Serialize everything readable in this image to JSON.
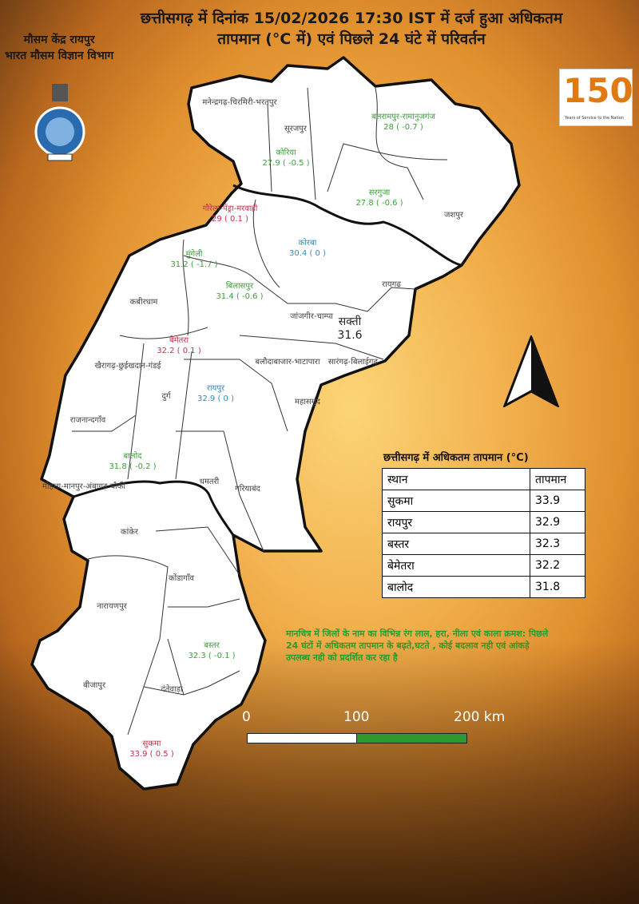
{
  "header": {
    "title_line1": "छत्तीसगढ़ में दिनांक 15/02/2026 17:30 IST में दर्ज हुआ अधिकतम",
    "title_line2": "तापमान (°C में) एवं पिछले 24 घंटे में परिवर्तन",
    "office_line1": "मौसम केंद्र रायपुर",
    "office_line2": "भारत मौसम विज्ञान विभाग",
    "logo_150_text": "150",
    "logo_150_tagline": "Years of Service to the Nation"
  },
  "colors": {
    "increase": "#c0304a",
    "decrease": "#3a9d3a",
    "no_change": "#2f8ab0",
    "no_data": "#222222",
    "scale_green": "#2e9a2e"
  },
  "districts": [
    {
      "name": "मनेन्द्रगढ़-चिरमिरी-भरतपुर",
      "value": "",
      "color": "gray"
    },
    {
      "name": "सूरजपुर",
      "value": "",
      "color": "gray"
    },
    {
      "name": "बलरामपुर-रामानुजगंज",
      "value": "28 ( -0.7 )",
      "color": "green"
    },
    {
      "name": "कोरिया",
      "value": "27.9 ( -0.5 )",
      "color": "green"
    },
    {
      "name": "सरगुजा",
      "value": "27.8 ( -0.6 )",
      "color": "green"
    },
    {
      "name": "जशपुर",
      "value": "",
      "color": "gray"
    },
    {
      "name": "गौरेला-पेंड्रा-मरवाही",
      "value": "29 ( 0.1 )",
      "color": "red"
    },
    {
      "name": "कोरबा",
      "value": "30.4 ( 0 )",
      "color": "blue"
    },
    {
      "name": "मुंगेली",
      "value": "31.2 ( -1.7 )",
      "color": "green"
    },
    {
      "name": "बिलासपुर",
      "value": "31.4 ( -0.6 )",
      "color": "green"
    },
    {
      "name": "रायगढ़",
      "value": "",
      "color": "gray"
    },
    {
      "name": "कबीरधाम",
      "value": "",
      "color": "gray"
    },
    {
      "name": "जांजगीर-चाम्पा",
      "value": "",
      "color": "gray"
    },
    {
      "name": "सक्ती",
      "value": "31.6",
      "color": "black"
    },
    {
      "name": "बेमेतरा",
      "value": "32.2 ( 0.1 )",
      "color": "red"
    },
    {
      "name": "खैरागढ़-छुईखदान-गंडई",
      "value": "",
      "color": "gray"
    },
    {
      "name": "बलौदाबाजार-भाटापारा",
      "value": "",
      "color": "gray"
    },
    {
      "name": "सारंगढ़-बिलाईगढ़",
      "value": "",
      "color": "gray"
    },
    {
      "name": "दुर्ग",
      "value": "",
      "color": "gray"
    },
    {
      "name": "रायपुर",
      "value": "32.9 ( 0 )",
      "color": "blue"
    },
    {
      "name": "महासमुंद",
      "value": "",
      "color": "gray"
    },
    {
      "name": "राजनान्दगाँव",
      "value": "",
      "color": "gray"
    },
    {
      "name": "बालोद",
      "value": "31.8 ( -0.2 )",
      "color": "green"
    },
    {
      "name": "मोहला-मानपुर-अंबागढ़ चौकी",
      "value": "",
      "color": "gray"
    },
    {
      "name": "धमतरी",
      "value": "",
      "color": "gray"
    },
    {
      "name": "गरियाबंद",
      "value": "",
      "color": "gray"
    },
    {
      "name": "कांकेर",
      "value": "",
      "color": "gray"
    },
    {
      "name": "कोंडागाँव",
      "value": "",
      "color": "gray"
    },
    {
      "name": "नारायणपुर",
      "value": "",
      "color": "gray"
    },
    {
      "name": "बस्तर",
      "value": "32.3 ( -0.1 )",
      "color": "green"
    },
    {
      "name": "बीजापुर",
      "value": "",
      "color": "gray"
    },
    {
      "name": "दंतेवाड़ा",
      "value": "",
      "color": "gray"
    },
    {
      "name": "सुकमा",
      "value": "33.9 ( 0.5 )",
      "color": "red"
    }
  ],
  "top_table": {
    "title": "छत्तीसगढ़ में  अधिकतम तापमान (°C)",
    "headers": [
      "स्थान",
      "तापमान"
    ],
    "rows": [
      [
        "सुकमा",
        "33.9"
      ],
      [
        "रायपुर",
        "32.9"
      ],
      [
        "बस्तर",
        "32.3"
      ],
      [
        "बेमेतरा",
        "32.2"
      ],
      [
        "बालोद",
        "31.8"
      ]
    ]
  },
  "legend_note": "मानचित्र में जिलों के नाम का विभिन्न रंग लाल, हरा, नीला एवं काला क्रमश: पिछले 24 घंटों में अधिकतम तापमान के बढ़ते,घटते , कोई बदलाव नही एवं आंकड़े उपलब्ध नही को प्रदर्शित कर रहा है",
  "scale": {
    "labels": [
      "0",
      "100",
      "200 km"
    ]
  },
  "north_arrow": "north-arrow-icon"
}
